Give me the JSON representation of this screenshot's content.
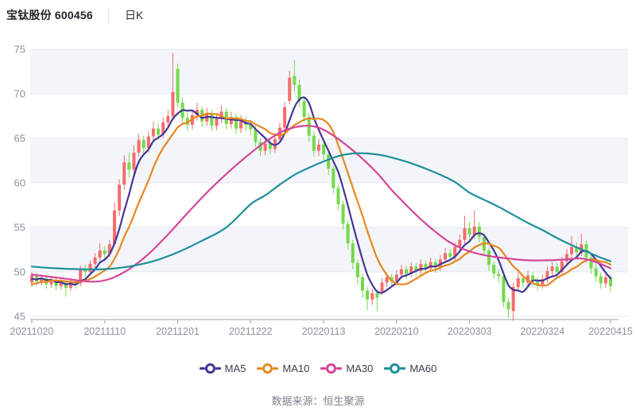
{
  "header": {
    "title": "宝钛股份 600456",
    "divider": "│",
    "period": "日K"
  },
  "legend": {
    "items": [
      {
        "label": "MA5",
        "color": "#453795"
      },
      {
        "label": "MA10",
        "color": "#e8871f"
      },
      {
        "label": "MA30",
        "color": "#d6459a"
      },
      {
        "label": "MA60",
        "color": "#1f8f99"
      }
    ]
  },
  "footer": {
    "source": "数据来源：恒生聚源"
  },
  "chart_data": {
    "type": "candlestick",
    "title": "宝钛股份 600456 日K",
    "ylim": [
      45,
      75
    ],
    "y_ticks": [
      45,
      50,
      55,
      60,
      65,
      70,
      75
    ],
    "shaded_bands": [
      [
        70,
        75
      ],
      [
        60,
        65
      ],
      [
        50,
        55
      ]
    ],
    "band_color": "#f3f5fa",
    "grid_line_color": "#e4e8f2",
    "axis_color": "#9aa0ab",
    "label_color": "#8b929f",
    "up_color": "#f56c6c",
    "down_color": "#72da4a",
    "x_tick_indices": [
      0,
      15,
      30,
      45,
      60,
      75,
      90,
      105,
      119
    ],
    "x_tick_labels": [
      "20211020",
      "20211110",
      "20211201",
      "20211222",
      "20220113",
      "20220210",
      "20220303",
      "20220324",
      "20220415"
    ],
    "dates": [
      "20211020",
      "20211021",
      "20211022",
      "20211025",
      "20211026",
      "20211027",
      "20211028",
      "20211029",
      "20211101",
      "20211102",
      "20211103",
      "20211104",
      "20211105",
      "20211108",
      "20211109",
      "20211110",
      "20211111",
      "20211112",
      "20211115",
      "20211116",
      "20211117",
      "20211118",
      "20211119",
      "20211122",
      "20211123",
      "20211124",
      "20211125",
      "20211126",
      "20211129",
      "20211130",
      "20211201",
      "20211202",
      "20211203",
      "20211206",
      "20211207",
      "20211208",
      "20211209",
      "20211210",
      "20211213",
      "20211214",
      "20211215",
      "20211216",
      "20211217",
      "20211220",
      "20211221",
      "20211222",
      "20211223",
      "20211224",
      "20211227",
      "20211228",
      "20211229",
      "20211230",
      "20211231",
      "20220104",
      "20220105",
      "20220106",
      "20220107",
      "20220110",
      "20220111",
      "20220112",
      "20220113",
      "20220114",
      "20220117",
      "20220118",
      "20220119",
      "20220120",
      "20220121",
      "20220124",
      "20220125",
      "20220126",
      "20220127",
      "20220128",
      "20220207",
      "20220208",
      "20220209",
      "20220210",
      "20220211",
      "20220214",
      "20220215",
      "20220216",
      "20220217",
      "20220218",
      "20220221",
      "20220222",
      "20220223",
      "20220224",
      "20220225",
      "20220228",
      "20220301",
      "20220302",
      "20220303",
      "20220304",
      "20220307",
      "20220308",
      "20220309",
      "20220310",
      "20220311",
      "20220314",
      "20220315",
      "20220316",
      "20220317",
      "20220318",
      "20220321",
      "20220322",
      "20220323",
      "20220324",
      "20220325",
      "20220328",
      "20220329",
      "20220330",
      "20220331",
      "20220401",
      "20220406",
      "20220407",
      "20220408",
      "20220411",
      "20220412",
      "20220413",
      "20220414",
      "20220415"
    ],
    "ohlc": [
      [
        48.8,
        49.6,
        48.3,
        50.0
      ],
      [
        49.6,
        48.9,
        48.5,
        49.9
      ],
      [
        48.9,
        49.3,
        48.5,
        49.7
      ],
      [
        49.3,
        48.6,
        48.1,
        49.6
      ],
      [
        48.6,
        49.1,
        48.2,
        49.5
      ],
      [
        49.1,
        48.4,
        47.9,
        49.4
      ],
      [
        48.4,
        48.8,
        48.0,
        49.2
      ],
      [
        48.8,
        48.2,
        47.2,
        49.1
      ],
      [
        48.2,
        48.9,
        47.9,
        49.3
      ],
      [
        48.9,
        48.6,
        48.1,
        49.2
      ],
      [
        48.7,
        50.3,
        48.4,
        50.7
      ],
      [
        50.3,
        50.0,
        49.4,
        50.8
      ],
      [
        50.0,
        50.9,
        49.6,
        51.3
      ],
      [
        50.9,
        51.6,
        50.5,
        52.1
      ],
      [
        51.6,
        52.4,
        51.2,
        53.2
      ],
      [
        52.4,
        52.0,
        51.4,
        52.9
      ],
      [
        52.0,
        53.1,
        51.7,
        53.6
      ],
      [
        53.1,
        56.9,
        52.9,
        57.8
      ],
      [
        56.9,
        59.8,
        56.3,
        60.4
      ],
      [
        59.8,
        62.3,
        59.2,
        63.1
      ],
      [
        62.3,
        61.5,
        60.6,
        63.4
      ],
      [
        61.5,
        63.4,
        61.0,
        64.2
      ],
      [
        63.4,
        64.8,
        62.9,
        65.5
      ],
      [
        64.8,
        63.9,
        63.2,
        65.3
      ],
      [
        63.9,
        65.2,
        63.4,
        65.8
      ],
      [
        65.2,
        66.1,
        64.6,
        66.9
      ],
      [
        66.1,
        65.4,
        64.8,
        66.7
      ],
      [
        65.4,
        66.8,
        65.0,
        67.4
      ],
      [
        66.8,
        67.5,
        66.2,
        68.2
      ],
      [
        67.5,
        70.2,
        67.0,
        74.6
      ],
      [
        72.8,
        69.0,
        68.5,
        73.4
      ],
      [
        69.0,
        67.3,
        66.6,
        69.6
      ],
      [
        67.3,
        66.5,
        65.8,
        67.9
      ],
      [
        66.5,
        67.6,
        66.0,
        68.1
      ],
      [
        67.6,
        68.2,
        67.0,
        69.0
      ],
      [
        68.2,
        66.9,
        66.3,
        68.6
      ],
      [
        66.9,
        67.8,
        66.4,
        68.4
      ],
      [
        67.8,
        66.4,
        65.8,
        68.2
      ],
      [
        66.4,
        67.2,
        65.9,
        67.8
      ],
      [
        67.2,
        68.0,
        66.7,
        68.7
      ],
      [
        68.0,
        66.6,
        66.0,
        68.4
      ],
      [
        66.6,
        67.4,
        66.1,
        68.0
      ],
      [
        67.4,
        66.1,
        65.5,
        67.8
      ],
      [
        66.1,
        67.0,
        65.6,
        67.6
      ],
      [
        67.0,
        66.5,
        65.8,
        67.5
      ],
      [
        66.5,
        66.0,
        65.3,
        67.1
      ],
      [
        66.0,
        64.6,
        64.0,
        66.4
      ],
      [
        64.6,
        63.6,
        63.0,
        65.0
      ],
      [
        63.6,
        64.4,
        63.1,
        64.9
      ],
      [
        64.4,
        63.8,
        63.2,
        64.9
      ],
      [
        63.8,
        64.9,
        63.4,
        65.4
      ],
      [
        64.9,
        66.2,
        64.5,
        66.8
      ],
      [
        66.2,
        68.5,
        65.9,
        69.1
      ],
      [
        69.2,
        71.8,
        68.8,
        72.6
      ],
      [
        72.0,
        71.0,
        70.2,
        73.8
      ],
      [
        71.0,
        69.2,
        68.5,
        71.6
      ],
      [
        69.2,
        67.4,
        66.8,
        69.8
      ],
      [
        67.4,
        65.3,
        64.6,
        67.8
      ],
      [
        65.3,
        63.6,
        62.9,
        65.8
      ],
      [
        63.6,
        64.3,
        63.0,
        64.9
      ],
      [
        64.3,
        63.2,
        62.5,
        64.8
      ],
      [
        63.2,
        61.6,
        60.9,
        63.6
      ],
      [
        61.6,
        59.4,
        58.8,
        61.9
      ],
      [
        59.4,
        57.6,
        56.9,
        59.8
      ],
      [
        57.6,
        55.4,
        54.7,
        58.0
      ],
      [
        55.4,
        53.2,
        52.5,
        55.8
      ],
      [
        53.2,
        51.0,
        50.3,
        53.6
      ],
      [
        51.0,
        49.4,
        48.6,
        51.4
      ],
      [
        49.4,
        47.9,
        47.1,
        49.8
      ],
      [
        47.9,
        46.9,
        45.7,
        48.3
      ],
      [
        46.9,
        47.6,
        46.3,
        48.1
      ],
      [
        47.6,
        47.1,
        45.6,
        48.0
      ],
      [
        47.8,
        48.8,
        47.4,
        49.3
      ],
      [
        48.8,
        49.4,
        48.3,
        49.9
      ],
      [
        49.4,
        48.9,
        48.3,
        49.8
      ],
      [
        48.9,
        49.7,
        48.5,
        50.2
      ],
      [
        49.7,
        50.3,
        49.2,
        50.8
      ],
      [
        50.3,
        49.8,
        49.2,
        50.7
      ],
      [
        49.8,
        50.6,
        49.4,
        51.1
      ],
      [
        50.6,
        50.1,
        49.6,
        51.0
      ],
      [
        50.1,
        50.9,
        49.7,
        51.4
      ],
      [
        50.9,
        50.4,
        49.8,
        51.3
      ],
      [
        50.4,
        51.1,
        50.0,
        51.6
      ],
      [
        51.1,
        50.5,
        49.9,
        51.5
      ],
      [
        50.5,
        51.4,
        50.1,
        51.9
      ],
      [
        51.4,
        52.1,
        51.0,
        52.7
      ],
      [
        52.1,
        51.7,
        51.1,
        52.6
      ],
      [
        51.7,
        52.8,
        51.3,
        53.3
      ],
      [
        52.8,
        53.6,
        52.4,
        54.2
      ],
      [
        53.6,
        54.9,
        53.2,
        56.3
      ],
      [
        54.9,
        54.2,
        53.5,
        55.6
      ],
      [
        54.2,
        55.1,
        53.8,
        56.9
      ],
      [
        55.1,
        53.9,
        53.3,
        55.6
      ],
      [
        53.9,
        52.4,
        51.8,
        54.3
      ],
      [
        52.4,
        50.8,
        50.1,
        52.8
      ],
      [
        50.8,
        49.8,
        49.2,
        51.2
      ],
      [
        49.8,
        49.5,
        48.8,
        50.3
      ],
      [
        49.5,
        46.6,
        46.0,
        49.8
      ],
      [
        46.6,
        45.8,
        44.8,
        47.0
      ],
      [
        45.6,
        48.3,
        44.5,
        48.8
      ],
      [
        48.3,
        49.3,
        47.9,
        49.9
      ],
      [
        49.3,
        48.8,
        48.2,
        49.8
      ],
      [
        48.8,
        49.6,
        48.4,
        50.1
      ],
      [
        49.6,
        49.0,
        48.4,
        50.0
      ],
      [
        49.0,
        48.5,
        47.9,
        49.4
      ],
      [
        48.5,
        49.2,
        48.1,
        49.7
      ],
      [
        49.2,
        50.1,
        48.8,
        50.6
      ],
      [
        50.1,
        50.6,
        49.6,
        51.1
      ],
      [
        50.6,
        50.0,
        49.4,
        51.0
      ],
      [
        50.0,
        51.2,
        49.7,
        51.7
      ],
      [
        51.2,
        52.0,
        50.8,
        52.6
      ],
      [
        52.0,
        52.8,
        51.6,
        54.0
      ],
      [
        52.8,
        52.2,
        51.6,
        53.3
      ],
      [
        52.2,
        53.1,
        51.8,
        54.3
      ],
      [
        53.1,
        51.6,
        51.0,
        53.5
      ],
      [
        51.6,
        50.4,
        49.8,
        52.0
      ],
      [
        50.4,
        49.5,
        48.9,
        50.9
      ],
      [
        49.5,
        48.7,
        48.1,
        49.9
      ],
      [
        48.7,
        49.4,
        48.2,
        49.9
      ],
      [
        49.4,
        48.4,
        47.8,
        49.7
      ]
    ],
    "ohlc_format": [
      "open",
      "close",
      "low",
      "high"
    ],
    "ma_seed_closes": [
      47.6,
      47.9,
      48.2,
      47.8,
      48.3,
      49.2,
      48.8,
      49.5,
      49.0
    ],
    "ma_series": [
      {
        "name": "MA5",
        "color": "#453795",
        "window": 5,
        "source": "computed_from_closes"
      },
      {
        "name": "MA10",
        "color": "#e8871f",
        "window": 10,
        "source": "computed_from_closes"
      },
      {
        "name": "MA30",
        "color": "#d6459a",
        "source": "anchors",
        "anchors": [
          [
            0,
            49.7
          ],
          [
            6,
            49.3
          ],
          [
            12,
            48.9
          ],
          [
            16,
            49.2
          ],
          [
            20,
            50.3
          ],
          [
            24,
            52.0
          ],
          [
            28,
            54.2
          ],
          [
            32,
            56.6
          ],
          [
            36,
            58.9
          ],
          [
            40,
            61.0
          ],
          [
            44,
            62.9
          ],
          [
            48,
            64.6
          ],
          [
            52,
            65.9
          ],
          [
            56,
            66.4
          ],
          [
            59,
            66.2
          ],
          [
            62,
            65.3
          ],
          [
            65,
            64.1
          ],
          [
            68,
            62.7
          ],
          [
            71,
            61.1
          ],
          [
            74,
            59.2
          ],
          [
            77,
            57.5
          ],
          [
            80,
            55.9
          ],
          [
            83,
            54.5
          ],
          [
            86,
            53.3
          ],
          [
            89,
            52.5
          ],
          [
            92,
            52.0
          ],
          [
            95,
            51.7
          ],
          [
            98,
            51.5
          ],
          [
            102,
            51.3
          ],
          [
            106,
            51.3
          ],
          [
            110,
            51.4
          ],
          [
            113,
            51.5
          ],
          [
            116,
            51.1
          ],
          [
            119,
            50.4
          ]
        ]
      },
      {
        "name": "MA60",
        "color": "#1f8f99",
        "source": "anchors",
        "anchors": [
          [
            0,
            50.6
          ],
          [
            5,
            50.4
          ],
          [
            10,
            50.3
          ],
          [
            15,
            50.3
          ],
          [
            20,
            50.6
          ],
          [
            25,
            51.2
          ],
          [
            30,
            52.2
          ],
          [
            35,
            53.5
          ],
          [
            40,
            55.0
          ],
          [
            45,
            57.6
          ],
          [
            48,
            58.6
          ],
          [
            51,
            59.8
          ],
          [
            54,
            60.9
          ],
          [
            57,
            61.7
          ],
          [
            60,
            62.4
          ],
          [
            63,
            63.0
          ],
          [
            66,
            63.3
          ],
          [
            69,
            63.3
          ],
          [
            72,
            63.1
          ],
          [
            75,
            62.7
          ],
          [
            78,
            62.2
          ],
          [
            81,
            61.6
          ],
          [
            84,
            60.9
          ],
          [
            87,
            60.1
          ],
          [
            90,
            58.9
          ],
          [
            93,
            58.1
          ],
          [
            96,
            57.3
          ],
          [
            99,
            56.4
          ],
          [
            102,
            55.5
          ],
          [
            105,
            54.7
          ],
          [
            108,
            53.8
          ],
          [
            111,
            53.0
          ],
          [
            114,
            52.3
          ],
          [
            117,
            51.6
          ],
          [
            119,
            51.2
          ]
        ]
      }
    ]
  }
}
